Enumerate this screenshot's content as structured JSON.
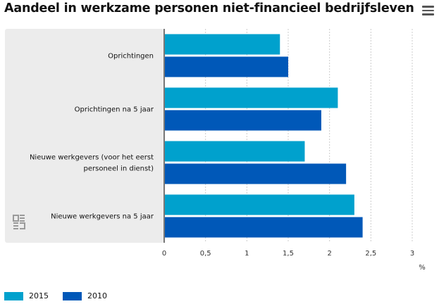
{
  "header": {
    "title": "Aandeel in werkzame personen niet-financieel bedrijfsleven",
    "menu_icon": "hamburger-menu-icon"
  },
  "watermark": {
    "icon": "cbs-logo-icon"
  },
  "chart_data": {
    "type": "bar",
    "orientation": "horizontal",
    "title": "Aandeel in werkzame personen niet-financieel bedrijfsleven",
    "categories": [
      "Oprichtingen",
      "Oprichtingen na 5 jaar",
      "Nieuwe werkgevers (voor het eerst personeel in dienst)",
      "Nieuwe werkgevers na 5 jaar"
    ],
    "category_label_lines": [
      [
        "Oprichtingen"
      ],
      [
        "Oprichtingen na 5 jaar"
      ],
      [
        "Nieuwe werkgevers (voor het eerst",
        "personeel in dienst)"
      ],
      [
        "Nieuwe werkgevers na 5 jaar"
      ]
    ],
    "series": [
      {
        "name": "2015",
        "color": "#00a1cd",
        "values": [
          1.4,
          2.1,
          1.7,
          2.3
        ]
      },
      {
        "name": "2010",
        "color": "#0058b8",
        "values": [
          1.5,
          1.9,
          2.2,
          2.4
        ]
      }
    ],
    "xlim": [
      0,
      3
    ],
    "xticks": [
      0,
      0.5,
      1,
      1.5,
      2,
      2.5,
      3
    ],
    "xtick_labels": [
      "0",
      "0,5",
      "1",
      "1,5",
      "2",
      "2,5",
      "3"
    ],
    "xlabel": "%",
    "grid": "vertical dashed",
    "legend": {
      "position": "bottom-left"
    },
    "colors": {
      "panel_bg": "#ececec",
      "grid": "#cccccc",
      "axis": "#333333"
    }
  }
}
